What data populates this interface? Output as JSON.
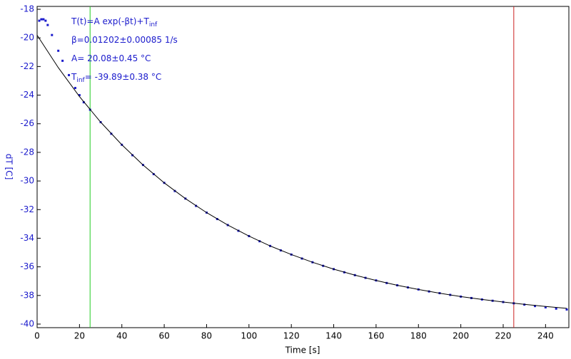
{
  "chart_data": {
    "type": "scatter",
    "x_label": "Time [s]",
    "y_label": "dT [C]",
    "xlim": [
      0,
      251
    ],
    "ylim": [
      -40.25,
      -17.8
    ],
    "xticks": [
      0,
      20,
      40,
      60,
      80,
      100,
      120,
      140,
      160,
      180,
      200,
      220,
      240
    ],
    "yticks": [
      -18,
      -20,
      -22,
      -24,
      -26,
      -28,
      -30,
      -32,
      -34,
      -36,
      -38,
      -40
    ],
    "annotations": [
      {
        "text": "T(t)=A exp(-βt)+T",
        "sub": "inf"
      },
      {
        "text": "β=0.01202±0.00085 1/s"
      },
      {
        "text": "A= 20.08±0.45 °C"
      },
      {
        "text": "T",
        "sub": "inf",
        "after": "= -39.89±0.38 °C"
      }
    ],
    "cursors": [
      {
        "x": 25,
        "color": "#22cc22"
      },
      {
        "x": 225,
        "color": "#cc2222"
      }
    ],
    "series": [
      {
        "color": "#1a1acc",
        "x": [
          1,
          2,
          3,
          4,
          5,
          7,
          10,
          12,
          15,
          18,
          20,
          22,
          25,
          30,
          35,
          40,
          45,
          50,
          55,
          60,
          65,
          70,
          75,
          80,
          85,
          90,
          95,
          100,
          105,
          110,
          115,
          120,
          125,
          130,
          135,
          140,
          145,
          150,
          155,
          160,
          165,
          170,
          175,
          180,
          185,
          190,
          195,
          200,
          205,
          210,
          215,
          220,
          225,
          230,
          235,
          240,
          245,
          250
        ],
        "values": [
          -18.8,
          -18.7,
          -18.7,
          -18.8,
          -19.1,
          -19.8,
          -20.9,
          -21.6,
          -22.6,
          -23.5,
          -24.0,
          -24.5,
          -25.02,
          -25.89,
          -26.7,
          -27.47,
          -28.2,
          -28.88,
          -29.52,
          -30.13,
          -30.7,
          -31.23,
          -31.74,
          -32.21,
          -32.66,
          -33.08,
          -33.48,
          -33.85,
          -34.21,
          -34.54,
          -34.85,
          -35.14,
          -35.42,
          -35.68,
          -35.93,
          -36.16,
          -36.38,
          -36.58,
          -36.77,
          -36.95,
          -37.13,
          -37.29,
          -37.44,
          -37.58,
          -37.72,
          -37.84,
          -37.96,
          -38.08,
          -38.18,
          -38.28,
          -38.37,
          -38.46,
          -38.55,
          -38.64,
          -38.74,
          -38.83,
          -38.92,
          -38.98
        ]
      },
      {
        "color": "#000000",
        "line": true,
        "x": [
          0,
          10,
          20,
          30,
          40,
          50,
          60,
          70,
          80,
          90,
          100,
          110,
          120,
          130,
          140,
          150,
          160,
          170,
          180,
          190,
          200,
          210,
          220,
          230,
          240,
          250
        ],
        "values": [
          -19.81,
          -22.08,
          -24.1,
          -25.89,
          -27.47,
          -28.88,
          -30.13,
          -31.23,
          -32.21,
          -33.08,
          -33.85,
          -34.54,
          -35.14,
          -35.68,
          -36.16,
          -36.58,
          -36.95,
          -37.29,
          -37.58,
          -37.84,
          -38.08,
          -38.28,
          -38.46,
          -38.62,
          -38.77,
          -38.9
        ]
      }
    ]
  }
}
